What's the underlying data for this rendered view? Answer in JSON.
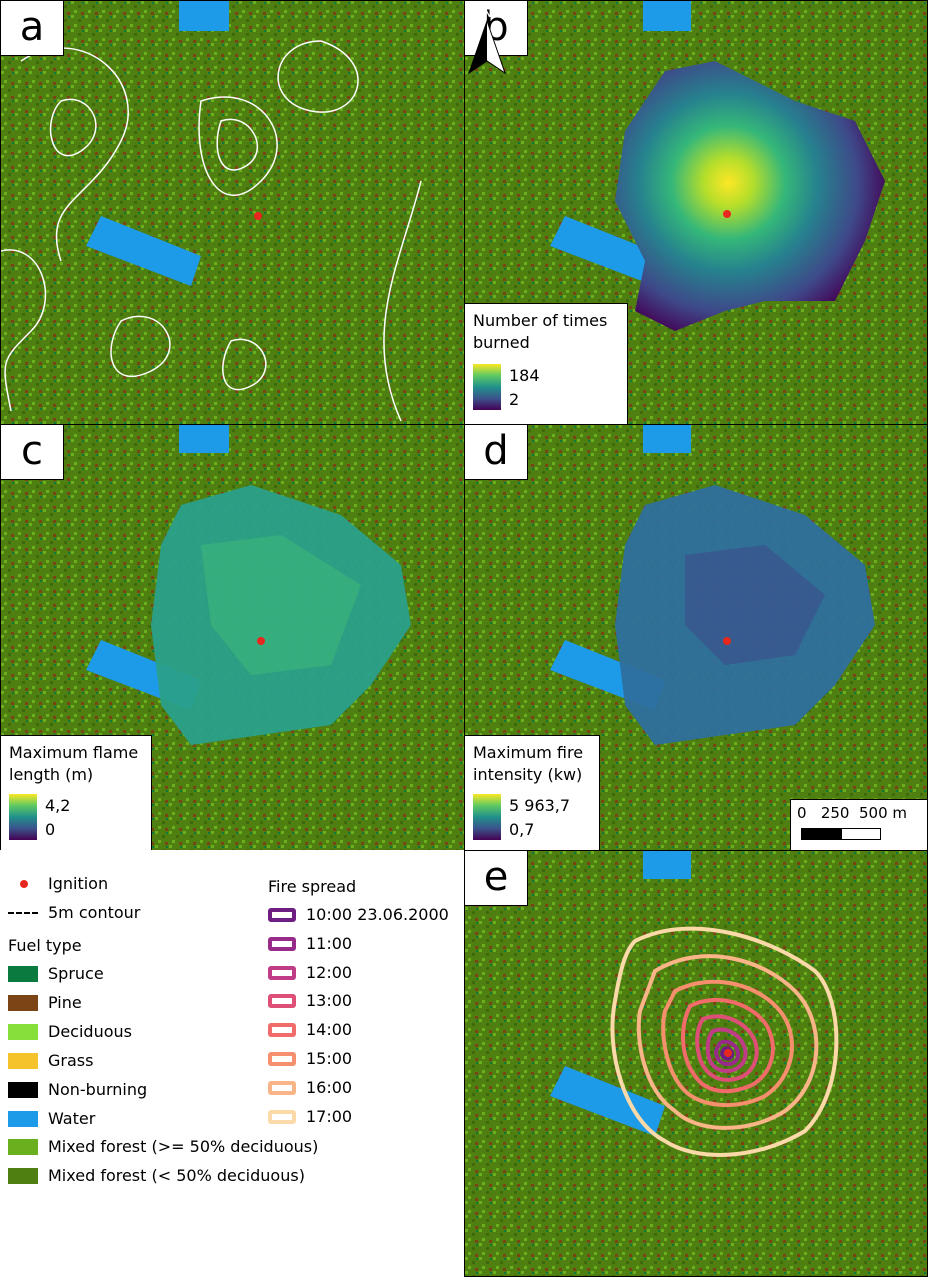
{
  "panels": {
    "a": {
      "label": "a"
    },
    "b": {
      "label": "b",
      "legend_title": "Number of times burned",
      "max": "184",
      "min": "2"
    },
    "c": {
      "label": "c",
      "legend_title": "Maximum flame length (m)",
      "max": "4,2",
      "min": "0"
    },
    "d": {
      "label": "d",
      "legend_title": "Maximum fire intensity (kw)",
      "max": "5 963,7",
      "min": "0,7"
    },
    "e": {
      "label": "e"
    }
  },
  "north_arrow": {
    "label": "N",
    "icon": "north-arrow-icon"
  },
  "scale_bar": {
    "text": "0   250  500 m"
  },
  "legend": {
    "ignition": "Ignition",
    "contour": "5m contour",
    "fuel_title": "Fuel type",
    "fuel_types": [
      {
        "label": "Spruce",
        "color": "#0b7a3e"
      },
      {
        "label": "Pine",
        "color": "#7a4414"
      },
      {
        "label": "Deciduous",
        "color": "#86e03a"
      },
      {
        "label": "Grass",
        "color": "#f5c32c"
      },
      {
        "label": "Non-burning",
        "color": "#000000"
      },
      {
        "label": "Water",
        "color": "#1e9be8"
      },
      {
        "label": "Mixed forest (>= 50% deciduous)",
        "color": "#6ab01e"
      },
      {
        "label": "Mixed forest (< 50% deciduous)",
        "color": "#4f7f10"
      }
    ],
    "spread_title": "Fire spread",
    "spread": [
      {
        "label": "10:00 23.06.2000",
        "color": "#6e1d82"
      },
      {
        "label": "11:00",
        "color": "#982a8a"
      },
      {
        "label": "12:00",
        "color": "#c03c86"
      },
      {
        "label": "13:00",
        "color": "#de4f77"
      },
      {
        "label": "14:00",
        "color": "#f06b6a"
      },
      {
        "label": "15:00",
        "color": "#f68f6e"
      },
      {
        "label": "16:00",
        "color": "#f9b487"
      },
      {
        "label": "17:00",
        "color": "#fcd9a8"
      }
    ]
  }
}
